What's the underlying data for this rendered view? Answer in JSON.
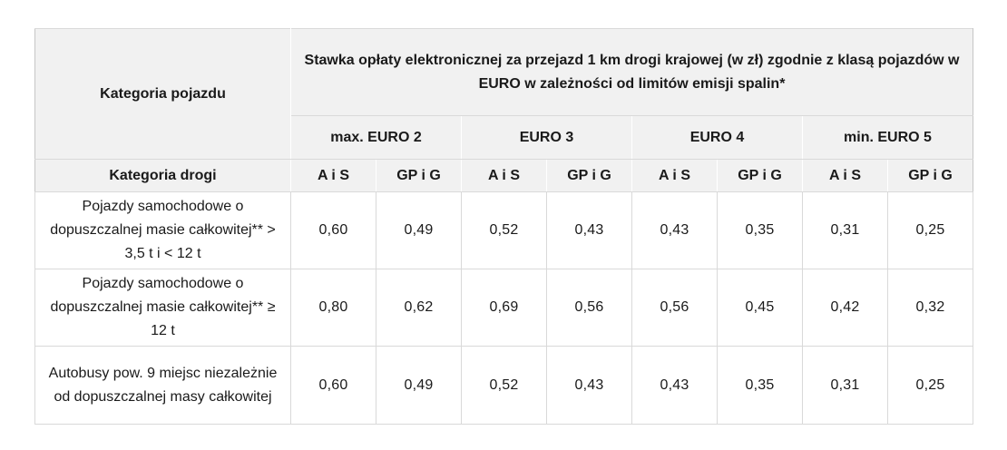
{
  "table": {
    "corner_header": "Kategoria pojazdu",
    "main_header": "Stawka opłaty elektronicznej za przejazd 1 km drogi krajowej (w zł) zgodnie z klasą pojazdów w EURO w zależności od limitów emisji spalin*",
    "road_category_header": "Kategoria drogi",
    "euro_classes": [
      "max. EURO 2",
      "EURO 3",
      "EURO 4",
      "min. EURO 5"
    ],
    "road_types": [
      "A i S",
      "GP i G"
    ],
    "rows": [
      {
        "category": "Pojazdy samochodowe o dopuszczalnej masie całkowitej** > 3,5 t i < 12 t",
        "values": [
          "0,60",
          "0,49",
          "0,52",
          "0,43",
          "0,43",
          "0,35",
          "0,31",
          "0,25"
        ]
      },
      {
        "category": "Pojazdy samochodowe o dopuszczalnej masie całkowitej** ≥ 12 t",
        "values": [
          "0,80",
          "0,62",
          "0,69",
          "0,56",
          "0,56",
          "0,45",
          "0,42",
          "0,32"
        ]
      },
      {
        "category": "Autobusy pow. 9 miejsc niezależnie od dopuszczalnej masy całkowitej",
        "values": [
          "0,60",
          "0,49",
          "0,52",
          "0,43",
          "0,43",
          "0,35",
          "0,31",
          "0,25"
        ]
      }
    ],
    "colors": {
      "header_bg": "#f1f1f1",
      "grid_line": "#d9d9d9",
      "outer_border": "#c6c6c6",
      "header_vertical_divider": "#ffffff",
      "text": "#1a1a1a",
      "body_bg": "#ffffff"
    }
  }
}
